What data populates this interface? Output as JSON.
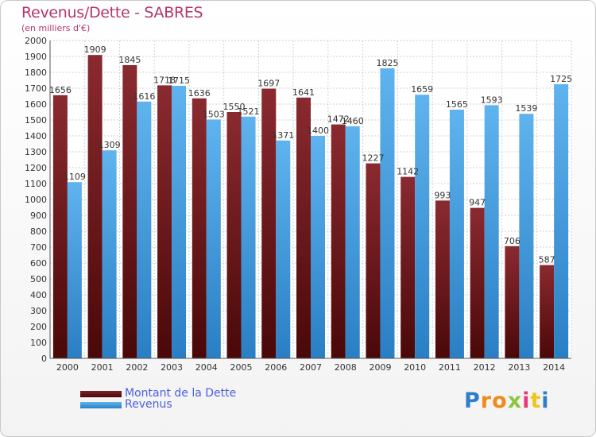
{
  "header": {
    "title": "Revenus/Dette - SABRES",
    "subtitle": "(en milliers d'€)"
  },
  "chart_data": {
    "type": "bar",
    "title": "Revenus/Dette - SABRES",
    "subtitle": "(en milliers d'€)",
    "categories": [
      "2000",
      "2001",
      "2002",
      "2003",
      "2004",
      "2005",
      "2006",
      "2007",
      "2008",
      "2009",
      "2010",
      "2011",
      "2012",
      "2013",
      "2014"
    ],
    "series": [
      {
        "name": "Montant de la Dette",
        "color": "#6b1a1e",
        "values": [
          1656,
          1909,
          1845,
          1718,
          1636,
          1550,
          1697,
          1641,
          1472,
          1227,
          1142,
          993,
          947,
          706,
          587
        ],
        "labels": [
          "1656",
          "1909",
          "1845",
          "1718",
          "1636",
          "1550",
          "1697",
          "1641",
          "1472",
          "1227",
          "1142",
          "993",
          "947",
          "706",
          "587"
        ]
      },
      {
        "name": "Revenus",
        "color": "#3e9ee0",
        "values": [
          1109,
          1309,
          1616,
          1715,
          1503,
          1521,
          1371,
          1400,
          1460,
          1825,
          1659,
          1565,
          1593,
          1539,
          1725
        ],
        "labels": [
          "1109",
          "1309",
          "1616",
          "1715",
          "1503",
          "1521",
          "1371",
          "1400",
          "1460",
          "1825",
          "1659",
          "1565",
          "1593",
          "1539",
          "1725"
        ]
      }
    ],
    "ylim": [
      0,
      2000
    ],
    "ytick_step": 100,
    "grid": true,
    "legend": "bottom-left"
  },
  "legend": {
    "items": [
      {
        "label": "Montant de la Dette",
        "color": "#6b1a1e"
      },
      {
        "label": "Revenus",
        "color": "#3e9ee0"
      }
    ]
  },
  "logo": {
    "letters": [
      {
        "ch": "P",
        "color": "#2f7ec9"
      },
      {
        "ch": "r",
        "color": "#f08a1c"
      },
      {
        "ch": "o",
        "color": "#f08a1c"
      },
      {
        "ch": "x",
        "color": "#8cc63f"
      },
      {
        "ch": "i",
        "color": "#e63b7a"
      },
      {
        "ch": "t",
        "color": "#f0c419"
      },
      {
        "ch": "i",
        "color": "#2f7ec9"
      }
    ]
  }
}
